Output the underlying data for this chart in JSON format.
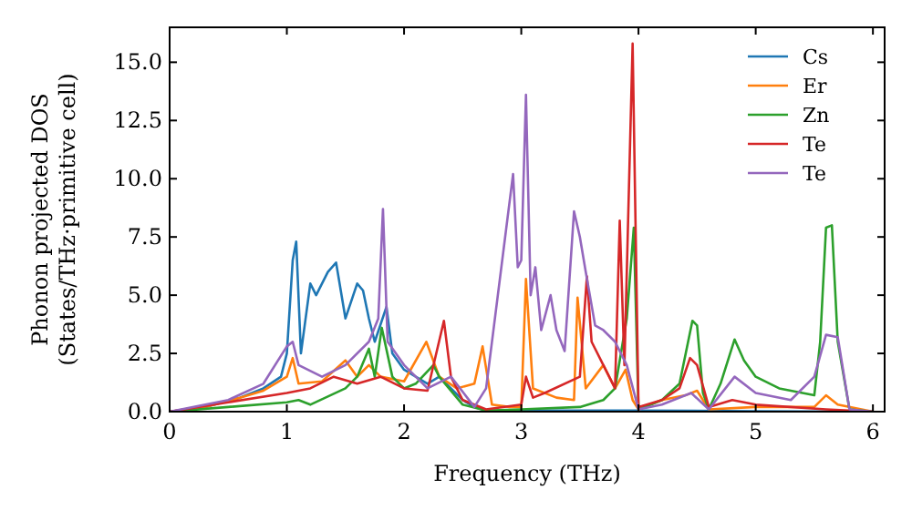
{
  "chart_data": {
    "type": "line",
    "xlabel": "Frequency (THz)",
    "ylabel": "Phonon projected DOS\n(States/THz·primitive cell)",
    "xlim": [
      0,
      6.1
    ],
    "ylim": [
      0,
      16.5
    ],
    "xticks": [
      0,
      1,
      2,
      3,
      4,
      5,
      6
    ],
    "yticks": [
      {
        "value": 0,
        "label": "0.0"
      },
      {
        "value": 2.5,
        "label": "2.5"
      },
      {
        "value": 5,
        "label": "5.0"
      },
      {
        "value": 7.5,
        "label": "7.5"
      },
      {
        "value": 10,
        "label": "10.0"
      },
      {
        "value": 12.5,
        "label": "12.5"
      },
      {
        "value": 15,
        "label": "15.0"
      }
    ],
    "legend": "top right",
    "grid": false,
    "series": [
      {
        "name": "Cs",
        "color": "#1f77b4",
        "x": [
          0,
          0.3,
          0.6,
          0.8,
          0.95,
          1.0,
          1.05,
          1.08,
          1.12,
          1.2,
          1.25,
          1.35,
          1.42,
          1.5,
          1.6,
          1.65,
          1.7,
          1.75,
          1.85,
          1.9,
          2.0,
          2.1,
          2.2,
          2.3,
          2.4,
          2.5,
          2.6,
          2.7,
          3.0,
          4.0,
          5.0,
          6.0
        ],
        "values": [
          0,
          0.2,
          0.6,
          1.0,
          1.5,
          2.5,
          6.5,
          7.3,
          2.5,
          5.5,
          5.0,
          6.0,
          6.4,
          4.0,
          5.5,
          5.2,
          4.0,
          3.0,
          4.5,
          2.5,
          1.8,
          1.5,
          1.2,
          1.5,
          1.0,
          0.5,
          0.2,
          0.05,
          0.05,
          0.05,
          0.02,
          0
        ]
      },
      {
        "name": "Er",
        "color": "#ff7f0e",
        "x": [
          0,
          0.3,
          0.6,
          0.8,
          1.0,
          1.05,
          1.1,
          1.3,
          1.5,
          1.6,
          1.7,
          1.8,
          2.0,
          2.19,
          2.3,
          2.45,
          2.6,
          2.67,
          2.75,
          2.9,
          3.0,
          3.04,
          3.1,
          3.3,
          3.45,
          3.48,
          3.55,
          3.7,
          3.8,
          3.89,
          3.95,
          4.0,
          4.2,
          4.4,
          4.5,
          4.6,
          5.0,
          5.5,
          5.6,
          5.7,
          6.0
        ],
        "values": [
          0,
          0.2,
          0.6,
          0.9,
          1.5,
          2.3,
          1.2,
          1.3,
          2.2,
          1.5,
          2.0,
          1.5,
          1.3,
          3.0,
          1.5,
          1.0,
          1.2,
          2.8,
          0.3,
          0.2,
          0.2,
          5.7,
          1.0,
          0.6,
          0.5,
          4.9,
          1.0,
          2.0,
          1.0,
          1.8,
          0.5,
          0.1,
          0.5,
          0.7,
          0.9,
          0.1,
          0.2,
          0.2,
          0.7,
          0.3,
          0
        ]
      },
      {
        "name": "Zn",
        "color": "#2ca02c",
        "x": [
          0,
          0.5,
          1.0,
          1.1,
          1.2,
          1.5,
          1.6,
          1.7,
          1.75,
          1.81,
          1.9,
          2.0,
          2.1,
          2.25,
          2.3,
          2.5,
          2.7,
          3.0,
          3.5,
          3.7,
          3.8,
          3.9,
          3.96,
          4.0,
          4.2,
          4.35,
          4.46,
          4.5,
          4.55,
          4.6,
          4.7,
          4.82,
          4.9,
          5.0,
          5.2,
          5.5,
          5.55,
          5.6,
          5.65,
          5.7,
          5.8,
          6.0
        ],
        "values": [
          0,
          0.2,
          0.4,
          0.5,
          0.3,
          1.0,
          1.5,
          2.7,
          1.5,
          3.6,
          1.5,
          1.0,
          1.2,
          2.0,
          1.5,
          0.3,
          0.05,
          0.1,
          0.2,
          0.5,
          1.0,
          4.0,
          7.9,
          0.1,
          0.5,
          1.2,
          3.9,
          3.7,
          0.8,
          0.1,
          1.2,
          3.1,
          2.2,
          1.5,
          1.0,
          0.7,
          3.0,
          7.9,
          8.0,
          3.0,
          0.1,
          0
        ]
      },
      {
        "name": "Te",
        "color": "#d62728",
        "x": [
          0,
          0.5,
          1.0,
          1.2,
          1.4,
          1.6,
          1.8,
          2.0,
          2.2,
          2.34,
          2.4,
          2.5,
          2.7,
          3.0,
          3.04,
          3.1,
          3.2,
          3.5,
          3.56,
          3.6,
          3.7,
          3.8,
          3.84,
          3.88,
          3.95,
          4.0,
          4.2,
          4.35,
          4.44,
          4.5,
          4.6,
          4.8,
          5.0,
          5.6,
          6.0
        ],
        "values": [
          0,
          0.4,
          0.8,
          1.0,
          1.5,
          1.2,
          1.5,
          1.0,
          0.9,
          3.9,
          1.5,
          0.5,
          0.1,
          0.3,
          1.5,
          0.6,
          0.8,
          1.5,
          5.8,
          3.0,
          2.0,
          1.0,
          8.2,
          2.0,
          15.8,
          0.2,
          0.5,
          1.0,
          2.3,
          2.0,
          0.2,
          0.5,
          0.3,
          0.1,
          0
        ]
      },
      {
        "name": "Te",
        "color": "#9467bd",
        "x": [
          0,
          0.5,
          0.8,
          1.0,
          1.05,
          1.1,
          1.3,
          1.5,
          1.7,
          1.78,
          1.82,
          1.86,
          2.0,
          2.2,
          2.4,
          2.6,
          2.7,
          2.78,
          2.85,
          2.93,
          2.97,
          3.0,
          3.04,
          3.08,
          3.12,
          3.17,
          3.25,
          3.3,
          3.37,
          3.45,
          3.5,
          3.55,
          3.63,
          3.7,
          3.8,
          3.9,
          4.0,
          4.2,
          4.45,
          4.6,
          4.82,
          5.0,
          5.3,
          5.5,
          5.6,
          5.7,
          5.8,
          6.0
        ],
        "values": [
          0,
          0.5,
          1.2,
          2.8,
          3.0,
          2.0,
          1.5,
          2.0,
          3.0,
          4.0,
          8.7,
          3.0,
          2.0,
          1.0,
          1.5,
          0.2,
          1.0,
          4.2,
          7.0,
          10.2,
          6.2,
          6.5,
          13.6,
          5.0,
          6.2,
          3.5,
          5.0,
          3.5,
          2.6,
          8.6,
          7.5,
          6.0,
          3.7,
          3.5,
          3.0,
          2.0,
          0.1,
          0.3,
          0.8,
          0.1,
          1.5,
          0.8,
          0.5,
          1.5,
          3.3,
          3.2,
          0.1,
          0
        ]
      }
    ]
  }
}
